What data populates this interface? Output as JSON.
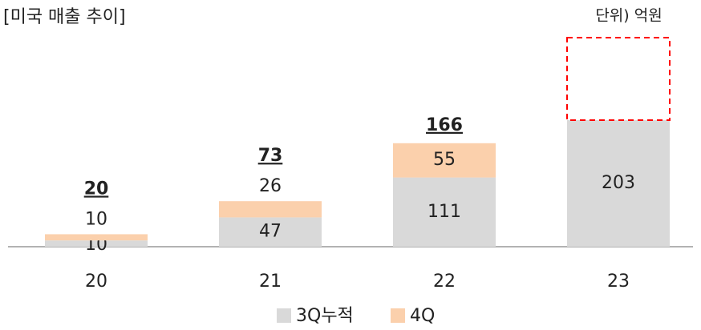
{
  "chart_data": {
    "type": "stacked_bar",
    "title": "[미국 매출 추이]",
    "unit": "단위) 억원",
    "categories": [
      "20",
      "21",
      "22",
      "23"
    ],
    "series": [
      {
        "name": "3Q누적",
        "color": "#d9d9d9",
        "values": [
          10,
          47,
          111,
          203
        ]
      },
      {
        "name": "4Q",
        "color": "#fbd0ac",
        "values": [
          10,
          26,
          55,
          null
        ]
      }
    ],
    "totals": [
      20,
      73,
      166,
      null
    ],
    "legend": "bottom"
  }
}
